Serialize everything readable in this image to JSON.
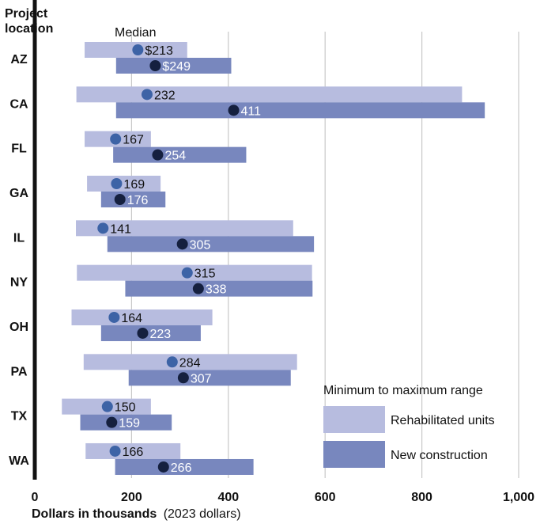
{
  "chart_data": {
    "type": "range-bar",
    "y_axis_title": "Project location",
    "x_axis_title_bold": "Dollars in thousands",
    "x_axis_title_rest": "(2023 dollars)",
    "xlim": [
      0,
      1000
    ],
    "x_ticks": [
      0,
      200,
      400,
      600,
      800,
      1000
    ],
    "x_tick_labels": [
      "0",
      "200",
      "400",
      "600",
      "800",
      "1,000"
    ],
    "grid": true,
    "median_label": "Median",
    "legend": {
      "title": "Minimum to maximum range",
      "placement": "bottom-right",
      "items": [
        {
          "key": "rehab",
          "label": "Rehabilitated units"
        },
        {
          "key": "new",
          "label": "New construction"
        }
      ]
    },
    "colors": {
      "rehab_bar": "#b7bcdf",
      "new_bar": "#7887be",
      "rehab_dot": "#3d63a6",
      "new_dot": "#15203f",
      "grid": "#c8c8c8",
      "axis": "#111111"
    },
    "categories": [
      "AZ",
      "CA",
      "FL",
      "GA",
      "IL",
      "NY",
      "OH",
      "PA",
      "TX",
      "WA"
    ],
    "series": [
      {
        "name": "Rehabilitated units",
        "key": "rehab",
        "min": [
          103,
          86,
          103,
          108,
          85,
          87,
          76,
          101,
          56,
          105
        ],
        "max": [
          315,
          883,
          240,
          260,
          534,
          573,
          367,
          542,
          240,
          301
        ],
        "median": [
          213,
          232,
          167,
          169,
          141,
          315,
          164,
          284,
          150,
          166
        ],
        "median_labels": [
          "$213",
          "232",
          "167",
          "169",
          "141",
          "315",
          "164",
          "284",
          "150",
          "166"
        ]
      },
      {
        "name": "New construction",
        "key": "new",
        "min": [
          168,
          168,
          162,
          137,
          150,
          187,
          137,
          194,
          94,
          166
        ],
        "max": [
          406,
          930,
          437,
          270,
          577,
          574,
          343,
          529,
          283,
          452
        ],
        "median": [
          249,
          411,
          254,
          176,
          305,
          338,
          223,
          307,
          159,
          266
        ],
        "median_labels": [
          "$249",
          "411",
          "254",
          "176",
          "305",
          "338",
          "223",
          "307",
          "159",
          "266"
        ]
      }
    ]
  }
}
